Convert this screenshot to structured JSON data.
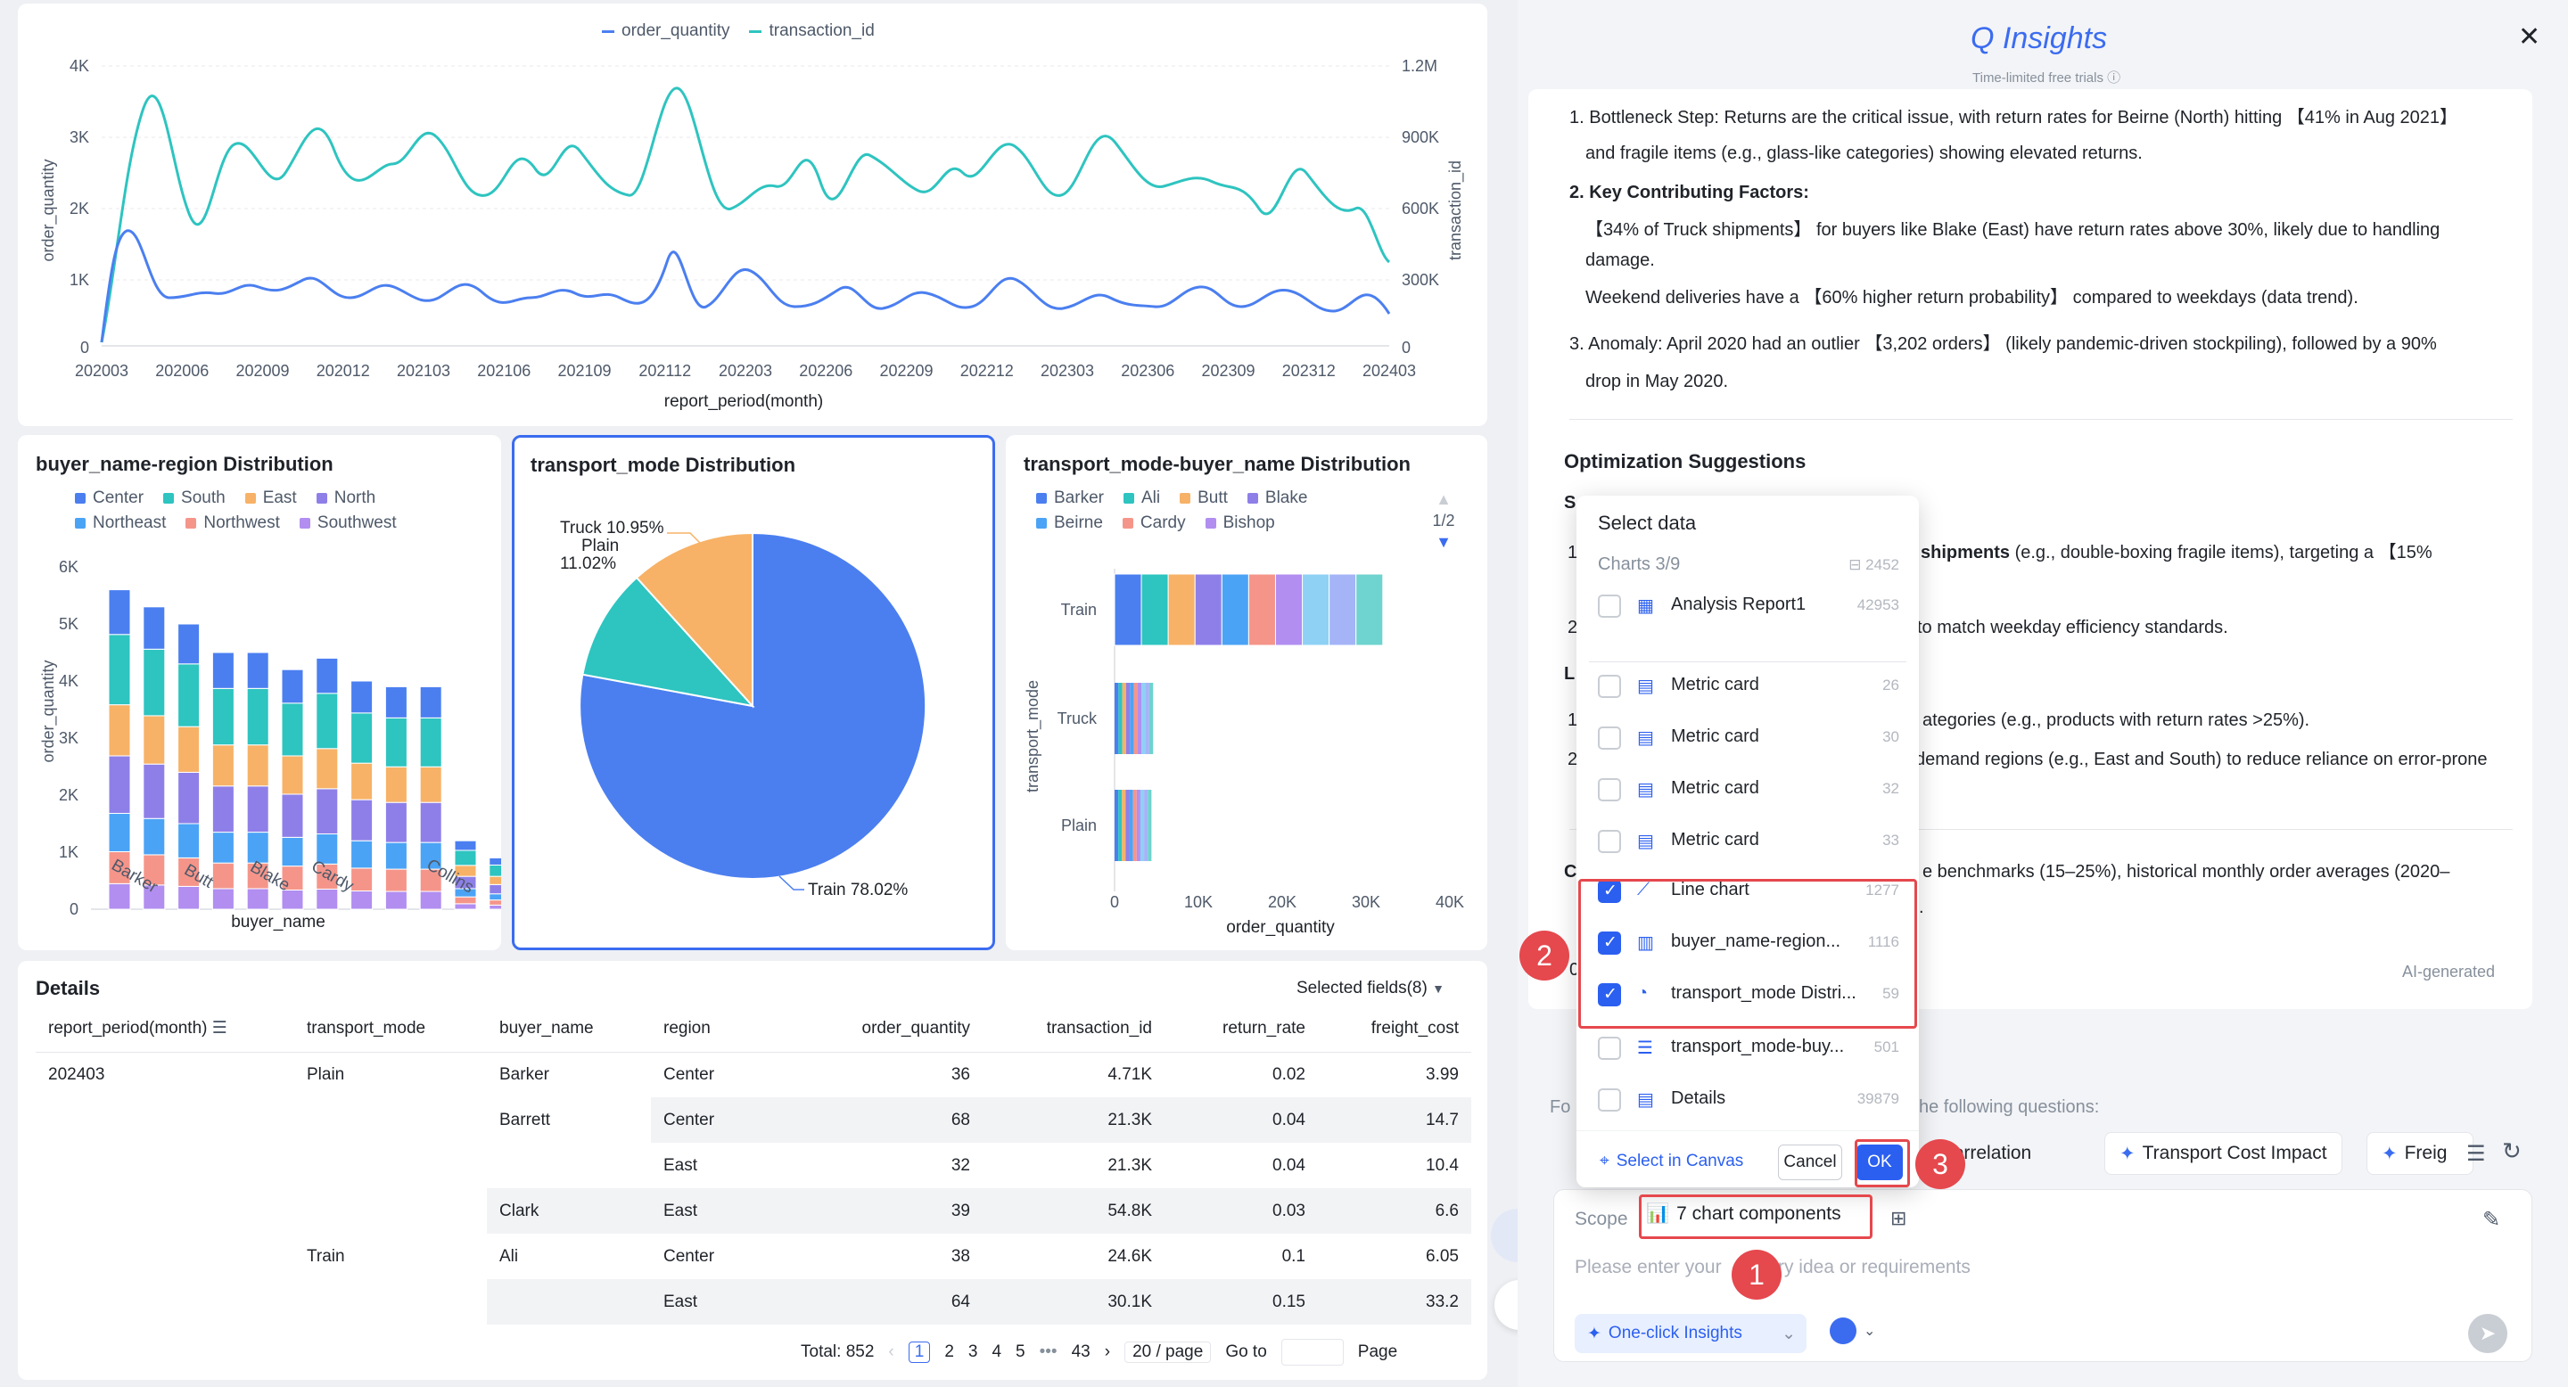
{
  "line_chart": {
    "legend": [
      {
        "name": "order_quantity",
        "color": "#4b7ff0"
      },
      {
        "name": "transaction_id",
        "color": "#2ec4c0"
      }
    ],
    "ylabel_left": "order_quantity",
    "ylabel_right": "transaction_id",
    "xlabel": "report_period(month)",
    "left_ticks": [
      "0",
      "1K",
      "2K",
      "3K",
      "4K"
    ],
    "right_ticks": [
      "0",
      "300K",
      "600K",
      "900K",
      "1.2M"
    ],
    "x_ticks": [
      "202003",
      "202006",
      "202009",
      "202012",
      "202103",
      "202106",
      "202109",
      "202112",
      "202203",
      "202206",
      "202209",
      "202212",
      "202303",
      "202306",
      "202309",
      "202312",
      "202403"
    ]
  },
  "bar_panel": {
    "title": "buyer_name-region Distribution",
    "legend": [
      {
        "name": "Center",
        "color": "#4b7ff0"
      },
      {
        "name": "South",
        "color": "#2ec4c0"
      },
      {
        "name": "East",
        "color": "#f7b267"
      },
      {
        "name": "North",
        "color": "#8e7fe8"
      },
      {
        "name": "Northeast",
        "color": "#4ba3f5"
      },
      {
        "name": "Northwest",
        "color": "#f5958a"
      },
      {
        "name": "Southwest",
        "color": "#b18ef0"
      }
    ],
    "ylabel": "order_quantity",
    "xlabel": "buyer_name",
    "y_ticks": [
      "0",
      "1K",
      "2K",
      "3K",
      "4K",
      "5K",
      "6K"
    ],
    "x_labels": [
      "Barker",
      "Butt",
      "Blake",
      "Cardy",
      "Collins"
    ]
  },
  "pie_panel": {
    "title": "transport_mode Distribution",
    "label_truck": "Truck 10.95%",
    "label_plain_1": "Plain",
    "label_plain_2": "11.02%",
    "label_train": "Train 78.02%"
  },
  "hbar_panel": {
    "title": "transport_mode-buyer_name Distribution",
    "legend": [
      {
        "name": "Barker",
        "color": "#4b7ff0"
      },
      {
        "name": "Ali",
        "color": "#2ec4c0"
      },
      {
        "name": "Butt",
        "color": "#f7b267"
      },
      {
        "name": "Blake",
        "color": "#8e7fe8"
      },
      {
        "name": "Beirne",
        "color": "#4ba3f5"
      },
      {
        "name": "Cardy",
        "color": "#f5958a"
      },
      {
        "name": "Bishop",
        "color": "#b18ef0"
      }
    ],
    "pager": "1/2",
    "ylabel": "transport_mode",
    "xlabel": "order_quantity",
    "categories": [
      "Train",
      "Truck",
      "Plain"
    ],
    "x_ticks": [
      "0",
      "10K",
      "20K",
      "30K",
      "40K"
    ]
  },
  "details": {
    "title": "Details",
    "selected_fields": "Selected fields(8)",
    "columns": [
      "report_period(month)",
      "transport_mode",
      "buyer_name",
      "region",
      "order_quantity",
      "transaction_id",
      "return_rate",
      "freight_cost"
    ],
    "rows": [
      [
        "202403",
        "Plain",
        "Barker",
        "Center",
        "36",
        "4.71K",
        "0.02",
        "3.99"
      ],
      [
        "",
        "",
        "Barrett",
        "Center",
        "68",
        "21.3K",
        "0.04",
        "14.7"
      ],
      [
        "",
        "",
        "",
        "East",
        "32",
        "21.3K",
        "0.04",
        "10.4"
      ],
      [
        "",
        "",
        "Clark",
        "East",
        "39",
        "54.8K",
        "0.03",
        "6.6"
      ],
      [
        "",
        "Train",
        "Ali",
        "Center",
        "38",
        "24.6K",
        "0.1",
        "6.05"
      ],
      [
        "",
        "",
        "",
        "East",
        "64",
        "30.1K",
        "0.15",
        "33.2"
      ]
    ],
    "pagination": {
      "total": "Total: 852",
      "pages": [
        "1",
        "2",
        "3",
        "4",
        "5",
        "•••",
        "43"
      ],
      "page_size": "20 / page",
      "goto": "Go to",
      "page_word": "Page"
    }
  },
  "assistant": {
    "title": "Q Insights",
    "subtitle": "Time-limited free trials",
    "p1_a": "1. Bottleneck Step: Returns are the critical issue, with return rates for Beirne (North) hitting 【41% in Aug 2021】",
    "p1_b": "and fragile items (e.g., glass-like categories) showing elevated returns.",
    "p2_head": "2. Key Contributing Factors:",
    "p2_a": "【34% of Truck shipments】 for buyers like Blake (East) have return rates above 30%, likely due to handling",
    "p2_b": "damage.",
    "p2_c": "Weekend deliveries have a 【60% higher return probability】 compared to weekdays (data trend).",
    "p3_a": "3. Anomaly: April 2020 had an outlier 【3,202 orders】 (likely pandemic-driven stockpiling), followed by a 90%",
    "p3_b": "drop in May 2020.",
    "opt_title": "Optimization Suggestions",
    "s_partial": "S",
    "l1_partial": "1",
    "l1_text_a": "shipments",
    "l1_text_b": "(e.g., double-boxing fragile items), targeting a 【15%",
    "l2_partial": "2",
    "l2_text": "to match weekday efficiency standards.",
    "l3_partial": "L",
    "l4_partial": "1",
    "l4_text": "ategories (e.g., products with return rates >25%).",
    "l5_partial": "2",
    "l5_text": "demand regions (e.g., East and South) to reduce reliance on error-prone",
    "l6_partial": "C",
    "l6_text": "e benchmarks (15–25%), historical monthly order averages (2020–",
    "l7_partial": "0",
    "l7_text": ".",
    "ai_generated": "AI-generated",
    "follow_partial": "Fo",
    "follow_text": "he following questions:",
    "chips": [
      {
        "icon": "sparkle-icon",
        "label": "e Correlation"
      },
      {
        "icon": "sparkle-icon",
        "label": "Transport Cost Impact"
      },
      {
        "icon": "sparkle-icon",
        "label": "Freig"
      }
    ],
    "scope_label": "Scope",
    "scope_value": "7 chart components",
    "placeholder_a": "Please enter your",
    "placeholder_b": "nary idea or requirements",
    "one_click": "One-click Insights"
  },
  "popup": {
    "title": "Select data",
    "charts_label": "Charts 3/9",
    "charts_count": "2452",
    "items": [
      {
        "label": "Analysis Report1",
        "count": "42953",
        "checked": false,
        "icon": "report-icon"
      },
      {
        "label": "Metric card",
        "count": "26",
        "checked": false,
        "icon": "metric-card-icon"
      },
      {
        "label": "Metric card",
        "count": "30",
        "checked": false,
        "icon": "metric-card-icon"
      },
      {
        "label": "Metric card",
        "count": "32",
        "checked": false,
        "icon": "metric-card-icon"
      },
      {
        "label": "Metric card",
        "count": "33",
        "checked": false,
        "icon": "metric-card-icon"
      },
      {
        "label": "Line chart",
        "count": "1277",
        "checked": true,
        "icon": "line-chart-icon"
      },
      {
        "label": "buyer_name-region...",
        "count": "1116",
        "checked": true,
        "icon": "bar-chart-icon"
      },
      {
        "label": "transport_mode Distri...",
        "count": "59",
        "checked": true,
        "icon": "pie-chart-icon"
      },
      {
        "label": "transport_mode-buy...",
        "count": "501",
        "checked": false,
        "icon": "hbar-chart-icon"
      },
      {
        "label": "Details",
        "count": "39879",
        "checked": false,
        "icon": "table-icon"
      }
    ],
    "select_in_canvas": "Select in Canvas",
    "cancel": "Cancel",
    "ok": "OK"
  },
  "annotations": [
    "1",
    "2",
    "3"
  ],
  "colors": {
    "accent": "#2b5ff0",
    "red": "#e5484d",
    "line1": "#4b7ff0",
    "line2": "#2ec4c0"
  }
}
